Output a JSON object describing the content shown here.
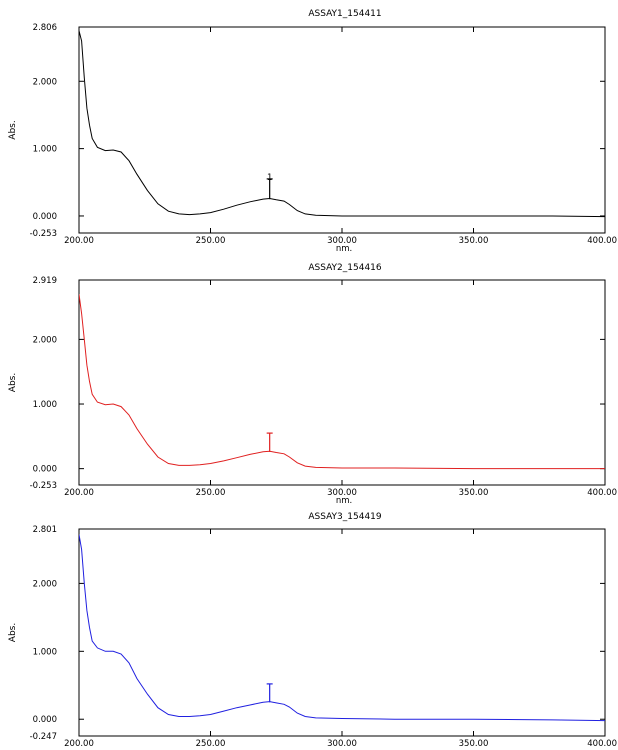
{
  "chart_data": [
    {
      "type": "line",
      "title": "ASSAY1_154411",
      "xlabel": "nm.",
      "ylabel": "Abs.",
      "xlim": [
        200,
        400
      ],
      "ylim": [
        -0.253,
        2.806
      ],
      "x_ticks": [
        "200.00",
        "250.00",
        "300.00",
        "350.00",
        "400.00"
      ],
      "y_ticks": [
        {
          "label": "2.806",
          "value": 2.806
        },
        {
          "label": "2.000",
          "value": 2.0
        },
        {
          "label": "1.000",
          "value": 1.0
        },
        {
          "label": "0.000",
          "value": 0.0
        },
        {
          "label": "-0.253",
          "value": -0.253
        }
      ],
      "color": "#000000",
      "peak": {
        "label": "1",
        "x": 272.5,
        "y": 0.25,
        "marker_top": 0.55
      },
      "series": [
        {
          "x": [
            200,
            201,
            202,
            203,
            204,
            205,
            207,
            210,
            213,
            216,
            219,
            222,
            226,
            230,
            234,
            238,
            242,
            246,
            250,
            255,
            260,
            265,
            270,
            272.5,
            275,
            278,
            280,
            283,
            286,
            290,
            300,
            320,
            350,
            380,
            400
          ],
          "y": [
            2.75,
            2.6,
            2.05,
            1.6,
            1.35,
            1.15,
            1.02,
            0.97,
            0.98,
            0.95,
            0.82,
            0.62,
            0.38,
            0.18,
            0.07,
            0.03,
            0.02,
            0.03,
            0.05,
            0.1,
            0.16,
            0.21,
            0.25,
            0.26,
            0.24,
            0.22,
            0.17,
            0.08,
            0.03,
            0.01,
            0.0,
            0.0,
            0.0,
            0.0,
            -0.01
          ]
        }
      ]
    },
    {
      "type": "line",
      "title": "ASSAY2_154416",
      "xlabel": "nm.",
      "ylabel": "Abs.",
      "xlim": [
        200,
        400
      ],
      "ylim": [
        -0.253,
        2.919
      ],
      "x_ticks": [
        "200.00",
        "250.00",
        "300.00",
        "350.00",
        "400.00"
      ],
      "y_ticks": [
        {
          "label": "2.919",
          "value": 2.919
        },
        {
          "label": "2.000",
          "value": 2.0
        },
        {
          "label": "1.000",
          "value": 1.0
        },
        {
          "label": "0.000",
          "value": 0.0
        },
        {
          "label": "-0.253",
          "value": -0.253
        }
      ],
      "color": "#e02020",
      "peak": {
        "label": "",
        "x": 272.5,
        "y": 0.26,
        "marker_top": 0.55
      },
      "series": [
        {
          "x": [
            200,
            201,
            202,
            203,
            204,
            205,
            207,
            210,
            213,
            216,
            219,
            222,
            226,
            230,
            234,
            238,
            242,
            246,
            250,
            255,
            260,
            265,
            270,
            272.5,
            275,
            278,
            280,
            283,
            286,
            290,
            300,
            320,
            350,
            380,
            400
          ],
          "y": [
            2.7,
            2.4,
            2.0,
            1.6,
            1.35,
            1.15,
            1.03,
            0.99,
            1.0,
            0.96,
            0.83,
            0.62,
            0.38,
            0.18,
            0.08,
            0.05,
            0.05,
            0.06,
            0.08,
            0.12,
            0.17,
            0.22,
            0.26,
            0.27,
            0.25,
            0.23,
            0.18,
            0.09,
            0.04,
            0.02,
            0.01,
            0.01,
            0.0,
            0.0,
            0.0
          ]
        }
      ]
    },
    {
      "type": "line",
      "title": "ASSAY3_154419",
      "xlabel": "",
      "ylabel": "Abs.",
      "xlim": [
        200,
        400
      ],
      "ylim": [
        -0.247,
        2.801
      ],
      "x_ticks": [
        "200.00",
        "250.00",
        "300.00",
        "350.00",
        "400.00"
      ],
      "y_ticks": [
        {
          "label": "2.801",
          "value": 2.801
        },
        {
          "label": "2.000",
          "value": 2.0
        },
        {
          "label": "1.000",
          "value": 1.0
        },
        {
          "label": "0.000",
          "value": 0.0
        },
        {
          "label": "-0.247",
          "value": -0.247
        }
      ],
      "color": "#2020e0",
      "peak": {
        "label": "",
        "x": 272.5,
        "y": 0.25,
        "marker_top": 0.52
      },
      "series": [
        {
          "x": [
            200,
            201,
            202,
            203,
            204,
            205,
            207,
            210,
            213,
            216,
            219,
            222,
            226,
            230,
            234,
            238,
            242,
            246,
            250,
            255,
            260,
            265,
            270,
            272.5,
            275,
            278,
            280,
            283,
            286,
            290,
            300,
            320,
            350,
            380,
            400
          ],
          "y": [
            2.72,
            2.5,
            2.0,
            1.6,
            1.35,
            1.15,
            1.05,
            1.0,
            1.0,
            0.96,
            0.83,
            0.6,
            0.37,
            0.17,
            0.07,
            0.04,
            0.04,
            0.05,
            0.07,
            0.12,
            0.17,
            0.21,
            0.25,
            0.26,
            0.24,
            0.22,
            0.18,
            0.09,
            0.04,
            0.02,
            0.01,
            0.0,
            0.0,
            -0.01,
            -0.02
          ]
        }
      ]
    }
  ]
}
